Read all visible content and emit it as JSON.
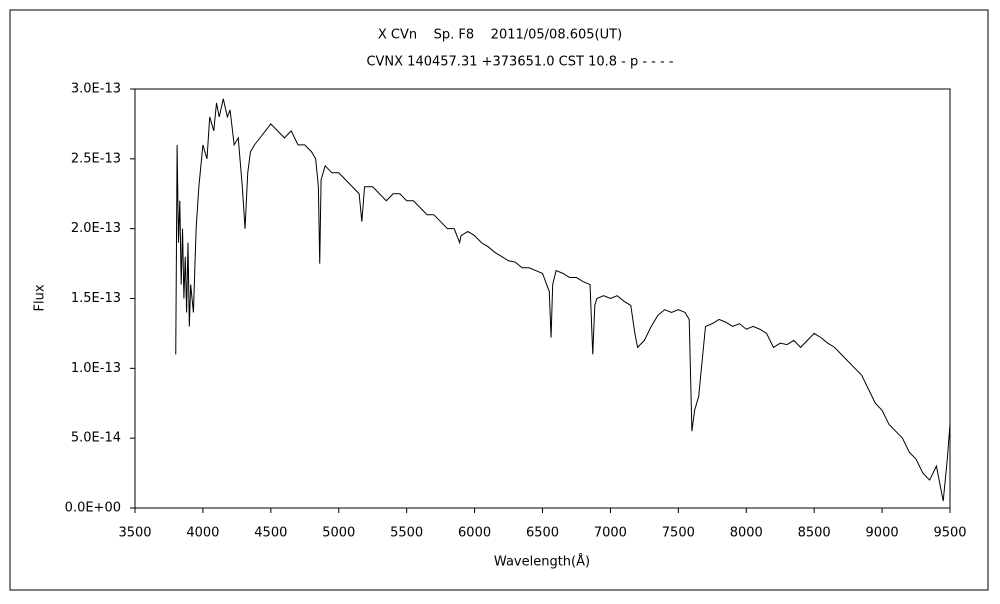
{
  "chart_data": {
    "type": "line",
    "title": "X CVn    Sp. F8    2011/05/08.605(UT)",
    "subtitle": "CVNX 140457.31 +373651.0 CST 10.8 - p - - - -",
    "x_label": "Wavelength(Å)",
    "y_label": "Flux",
    "color": "#000000",
    "xlim": [
      3500,
      9500
    ],
    "xticks": [
      3500,
      4000,
      4500,
      5000,
      5500,
      6000,
      6500,
      7000,
      7500,
      8000,
      8500,
      9000,
      9500
    ],
    "ylim": [
      0,
      3e-13
    ],
    "yticks": [
      {
        "value": 0,
        "label": "0.0E+00"
      },
      {
        "value": 5e-14,
        "label": "5.0E-14"
      },
      {
        "value": 1e-13,
        "label": "1.0E-13"
      },
      {
        "value": 1.5e-13,
        "label": "1.5E-13"
      },
      {
        "value": 2e-13,
        "label": "2.0E-13"
      },
      {
        "value": 2.5e-13,
        "label": "2.5E-13"
      },
      {
        "value": 3e-13,
        "label": "3.0E-13"
      }
    ],
    "x": [
      3800,
      3810,
      3820,
      3830,
      3840,
      3850,
      3860,
      3870,
      3880,
      3890,
      3900,
      3910,
      3930,
      3950,
      3970,
      4000,
      4030,
      4050,
      4080,
      4100,
      4120,
      4150,
      4180,
      4200,
      4230,
      4260,
      4290,
      4310,
      4330,
      4350,
      4380,
      4420,
      4460,
      4500,
      4550,
      4600,
      4650,
      4700,
      4750,
      4800,
      4830,
      4850,
      4860,
      4870,
      4900,
      4950,
      5000,
      5050,
      5100,
      5150,
      5170,
      5190,
      5250,
      5300,
      5350,
      5400,
      5450,
      5500,
      5550,
      5600,
      5650,
      5700,
      5750,
      5800,
      5850,
      5890,
      5900,
      5950,
      6000,
      6050,
      6100,
      6150,
      6200,
      6250,
      6300,
      6350,
      6400,
      6450,
      6500,
      6550,
      6563,
      6575,
      6600,
      6650,
      6700,
      6750,
      6800,
      6850,
      6870,
      6885,
      6900,
      6950,
      7000,
      7050,
      7100,
      7150,
      7180,
      7200,
      7250,
      7300,
      7350,
      7400,
      7450,
      7500,
      7550,
      7580,
      7600,
      7620,
      7650,
      7680,
      7700,
      7750,
      7800,
      7850,
      7900,
      7950,
      8000,
      8050,
      8100,
      8150,
      8200,
      8250,
      8300,
      8350,
      8400,
      8450,
      8500,
      8550,
      8600,
      8650,
      8700,
      8750,
      8800,
      8850,
      8900,
      8950,
      9000,
      9050,
      9100,
      9150,
      9200,
      9250,
      9300,
      9350,
      9400,
      9450,
      9480,
      9500
    ],
    "values": [
      1.1e-13,
      2.6e-13,
      1.9e-13,
      2.2e-13,
      1.6e-13,
      2e-13,
      1.5e-13,
      1.8e-13,
      1.4e-13,
      1.9e-13,
      1.3e-13,
      1.6e-13,
      1.4e-13,
      2e-13,
      2.3e-13,
      2.6e-13,
      2.5e-13,
      2.8e-13,
      2.7e-13,
      2.9e-13,
      2.8e-13,
      2.93e-13,
      2.8e-13,
      2.85e-13,
      2.6e-13,
      2.65e-13,
      2.3e-13,
      2e-13,
      2.4e-13,
      2.55e-13,
      2.6e-13,
      2.65e-13,
      2.7e-13,
      2.75e-13,
      2.7e-13,
      2.65e-13,
      2.7e-13,
      2.6e-13,
      2.6e-13,
      2.55e-13,
      2.5e-13,
      2.3e-13,
      1.75e-13,
      2.35e-13,
      2.45e-13,
      2.4e-13,
      2.4e-13,
      2.35e-13,
      2.3e-13,
      2.25e-13,
      2.05e-13,
      2.3e-13,
      2.3e-13,
      2.25e-13,
      2.2e-13,
      2.25e-13,
      2.25e-13,
      2.2e-13,
      2.2e-13,
      2.15e-13,
      2.1e-13,
      2.1e-13,
      2.05e-13,
      2e-13,
      2e-13,
      1.9e-13,
      1.95e-13,
      1.98e-13,
      1.95e-13,
      1.9e-13,
      1.87e-13,
      1.83e-13,
      1.8e-13,
      1.77e-13,
      1.76e-13,
      1.72e-13,
      1.72e-13,
      1.7e-13,
      1.68e-13,
      1.55e-13,
      1.22e-13,
      1.6e-13,
      1.7e-13,
      1.68e-13,
      1.65e-13,
      1.65e-13,
      1.62e-13,
      1.6e-13,
      1.1e-13,
      1.45e-13,
      1.5e-13,
      1.52e-13,
      1.5e-13,
      1.52e-13,
      1.48e-13,
      1.45e-13,
      1.25e-13,
      1.15e-13,
      1.2e-13,
      1.3e-13,
      1.38e-13,
      1.42e-13,
      1.4e-13,
      1.42e-13,
      1.4e-13,
      1.35e-13,
      5.5e-14,
      7e-14,
      8e-14,
      1.1e-13,
      1.3e-13,
      1.32e-13,
      1.35e-13,
      1.33e-13,
      1.3e-13,
      1.32e-13,
      1.28e-13,
      1.3e-13,
      1.28e-13,
      1.25e-13,
      1.15e-13,
      1.18e-13,
      1.17e-13,
      1.2e-13,
      1.15e-13,
      1.2e-13,
      1.25e-13,
      1.22e-13,
      1.18e-13,
      1.15e-13,
      1.1e-13,
      1.05e-13,
      1e-13,
      9.5e-14,
      8.5e-14,
      7.5e-14,
      7e-14,
      6e-14,
      5.5e-14,
      5e-14,
      4e-14,
      3.5e-14,
      2.5e-14,
      2e-14,
      3e-14,
      5e-15,
      3.5e-14,
      6e-14
    ]
  }
}
